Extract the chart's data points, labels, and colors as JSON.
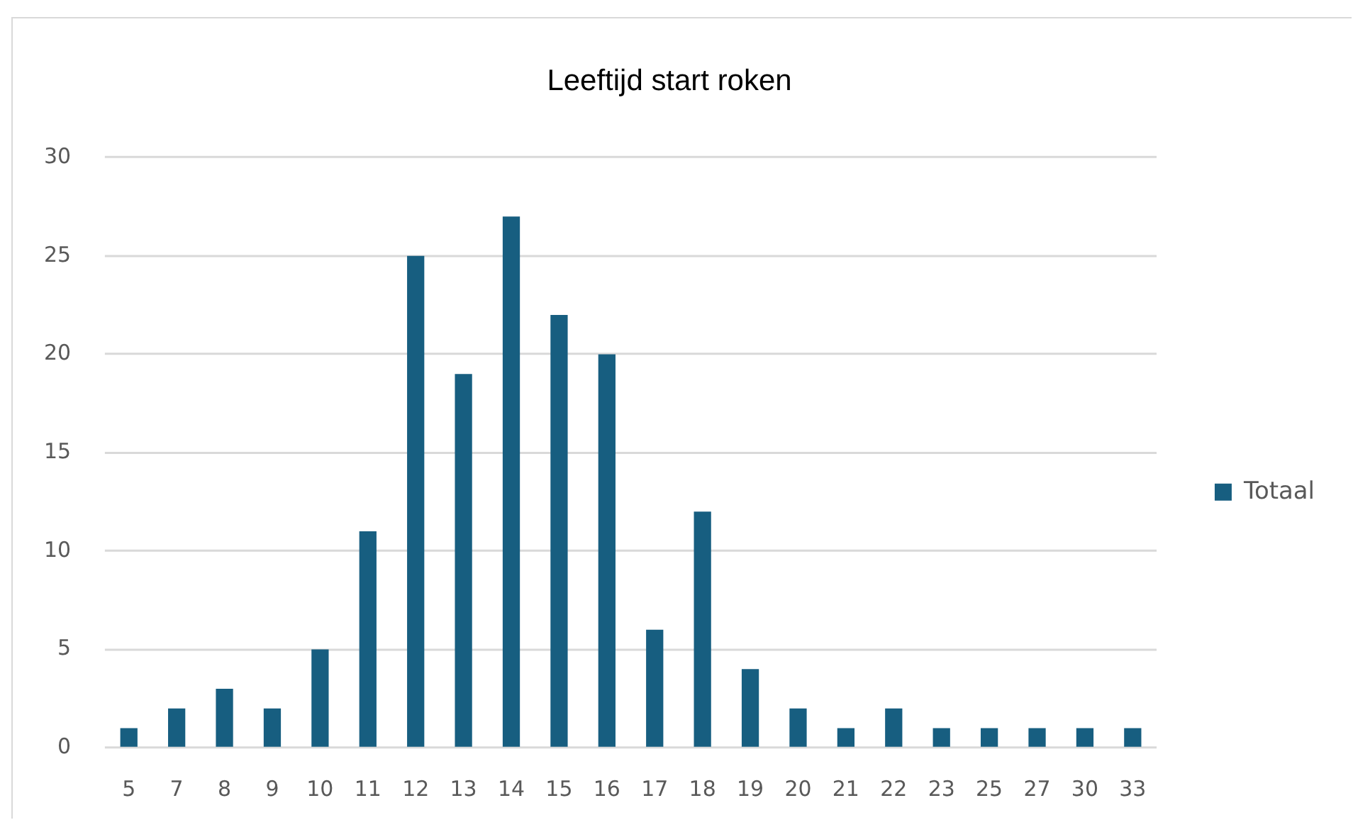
{
  "chart_data": {
    "type": "bar",
    "title": "Leeftijd start roken",
    "categories": [
      "5",
      "7",
      "8",
      "9",
      "10",
      "11",
      "12",
      "13",
      "14",
      "15",
      "16",
      "17",
      "18",
      "19",
      "20",
      "21",
      "22",
      "23",
      "25",
      "27",
      "30",
      "33"
    ],
    "series": [
      {
        "name": "Totaal",
        "color": "#175e80",
        "values": [
          1,
          2,
          3,
          2,
          5,
          11,
          25,
          19,
          27,
          22,
          20,
          6,
          12,
          4,
          2,
          1,
          2,
          1,
          1,
          1,
          1,
          1
        ]
      }
    ],
    "ylim": [
      0,
      30
    ],
    "yticks": [
      0,
      5,
      10,
      15,
      20,
      25,
      30
    ],
    "grid": "y",
    "legend": "right"
  }
}
